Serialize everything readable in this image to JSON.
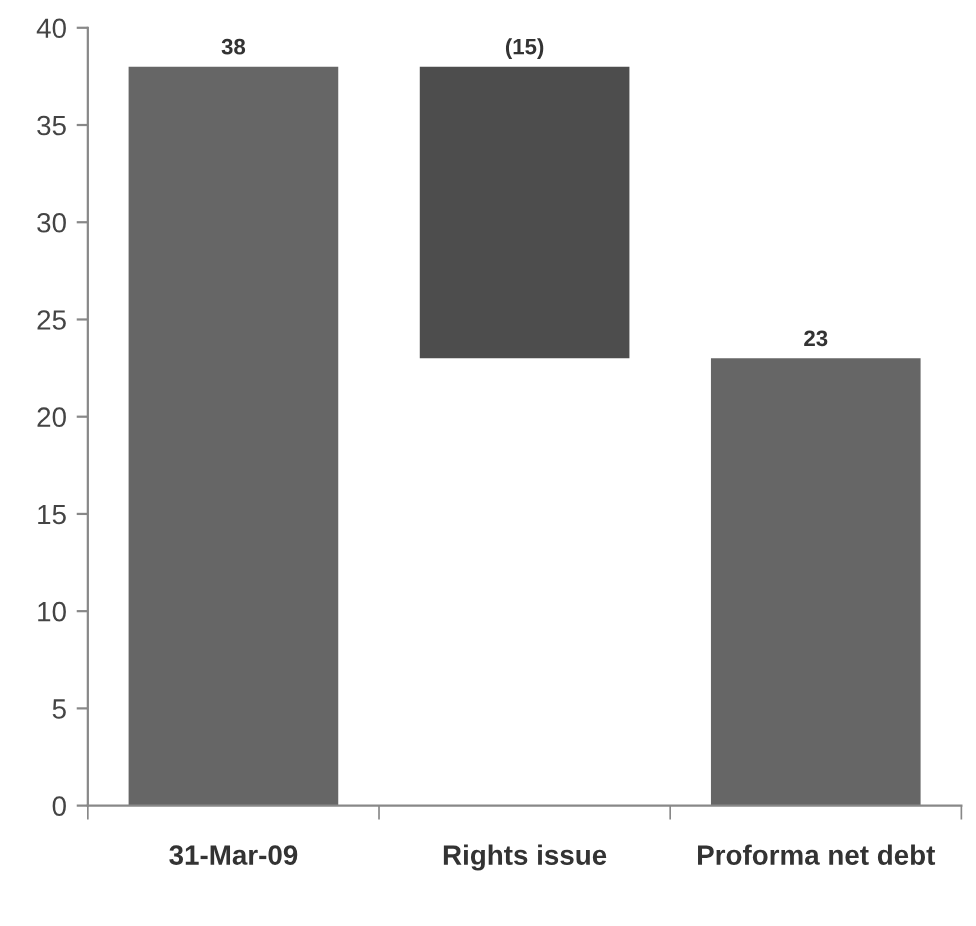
{
  "chart_data": {
    "type": "bar",
    "categories": [
      "31-Mar-09",
      "Rights issue",
      "Proforma net debt"
    ],
    "values": [
      38,
      -15,
      23
    ],
    "base": [
      0,
      38,
      0
    ],
    "colors": [
      "#666666",
      "#4d4d4d",
      "#666666"
    ],
    "value_labels": [
      "38",
      "(15)",
      "23"
    ],
    "ylim": [
      0,
      40
    ],
    "yticks": [
      0,
      5,
      10,
      15,
      20,
      25,
      30,
      35,
      40
    ],
    "grid": false,
    "legend": false
  }
}
